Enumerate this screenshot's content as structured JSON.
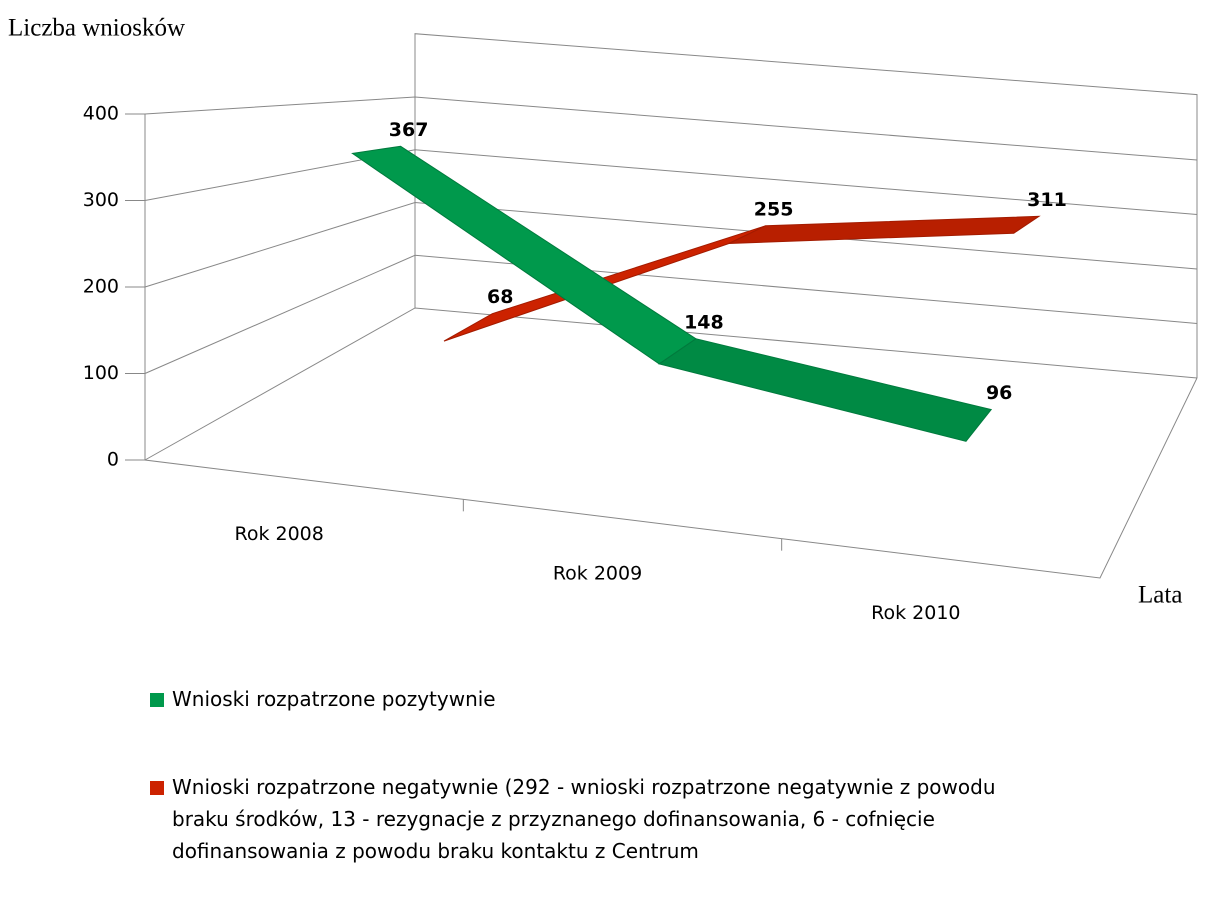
{
  "chart_data": {
    "type": "line3d",
    "y_label": "Liczba wniosków",
    "x_label": "Lata",
    "categories": [
      "Rok 2008",
      "Rok 2009",
      "Rok 2010"
    ],
    "series": [
      {
        "name": "Wnioski rozpatrzone pozytywnie",
        "color": "#00994c",
        "values": [
          367,
          148,
          96
        ]
      },
      {
        "name": "Wnioski rozpatrzone negatywnie (292 - wnioski rozpatrzone negatywnie z powodu braku środków, 13 - rezygnacje z przyznanego dofinansowania, 6 - cofnięcie dofinansowania z powodu braku kontaktu z Centrum",
        "color": "#cc2200",
        "values": [
          68,
          255,
          311
        ]
      }
    ],
    "ylim": [
      0,
      400
    ],
    "yticks": [
      0,
      100,
      200,
      300,
      400
    ],
    "grid": true
  }
}
